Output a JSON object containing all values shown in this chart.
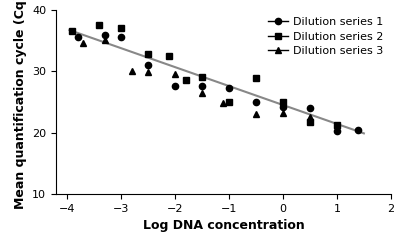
{
  "title": "",
  "xlabel": "Log DNA concentration",
  "ylabel": "Mean quantification cycle (Cq)",
  "xlim": [
    -4.2,
    2.0
  ],
  "ylim": [
    10,
    40
  ],
  "xticks": [
    -4,
    -3,
    -2,
    -1,
    0,
    1,
    2
  ],
  "yticks": [
    10,
    20,
    30,
    40
  ],
  "series1_x": [
    -3.8,
    -3.3,
    -3.0,
    -2.5,
    -2.0,
    -1.5,
    -1.0,
    -0.5,
    0.0,
    0.5,
    1.0,
    1.4
  ],
  "series1_y": [
    35.5,
    35.8,
    35.5,
    31.0,
    27.5,
    27.5,
    27.3,
    25.0,
    24.2,
    24.0,
    20.3,
    20.5
  ],
  "series2_x": [
    -3.9,
    -3.4,
    -3.0,
    -2.5,
    -2.1,
    -1.8,
    -1.5,
    -1.0,
    -0.5,
    0.0,
    0.5,
    1.0
  ],
  "series2_y": [
    36.5,
    37.5,
    37.0,
    32.8,
    32.5,
    28.5,
    29.0,
    25.0,
    28.8,
    25.0,
    21.8,
    21.3
  ],
  "series3_x": [
    -3.7,
    -3.3,
    -2.8,
    -2.5,
    -2.0,
    -1.5,
    -1.1,
    -0.5,
    0.0,
    0.5,
    1.0
  ],
  "series3_y": [
    34.5,
    35.0,
    30.0,
    29.8,
    29.5,
    26.5,
    24.8,
    23.0,
    23.2,
    22.5,
    21.2
  ],
  "trendline_slope": -3.08,
  "trendline_intercept": 24.5,
  "trendline_x": [
    -3.95,
    1.5
  ],
  "legend_labels": [
    "Dilution series 1",
    "Dilution series 2",
    "Dilution series 3"
  ],
  "marker_color": "black",
  "line_color": "#888888",
  "background_color": "#ffffff",
  "fontsize_axis_label": 9,
  "fontsize_tick": 8,
  "fontsize_legend": 8
}
